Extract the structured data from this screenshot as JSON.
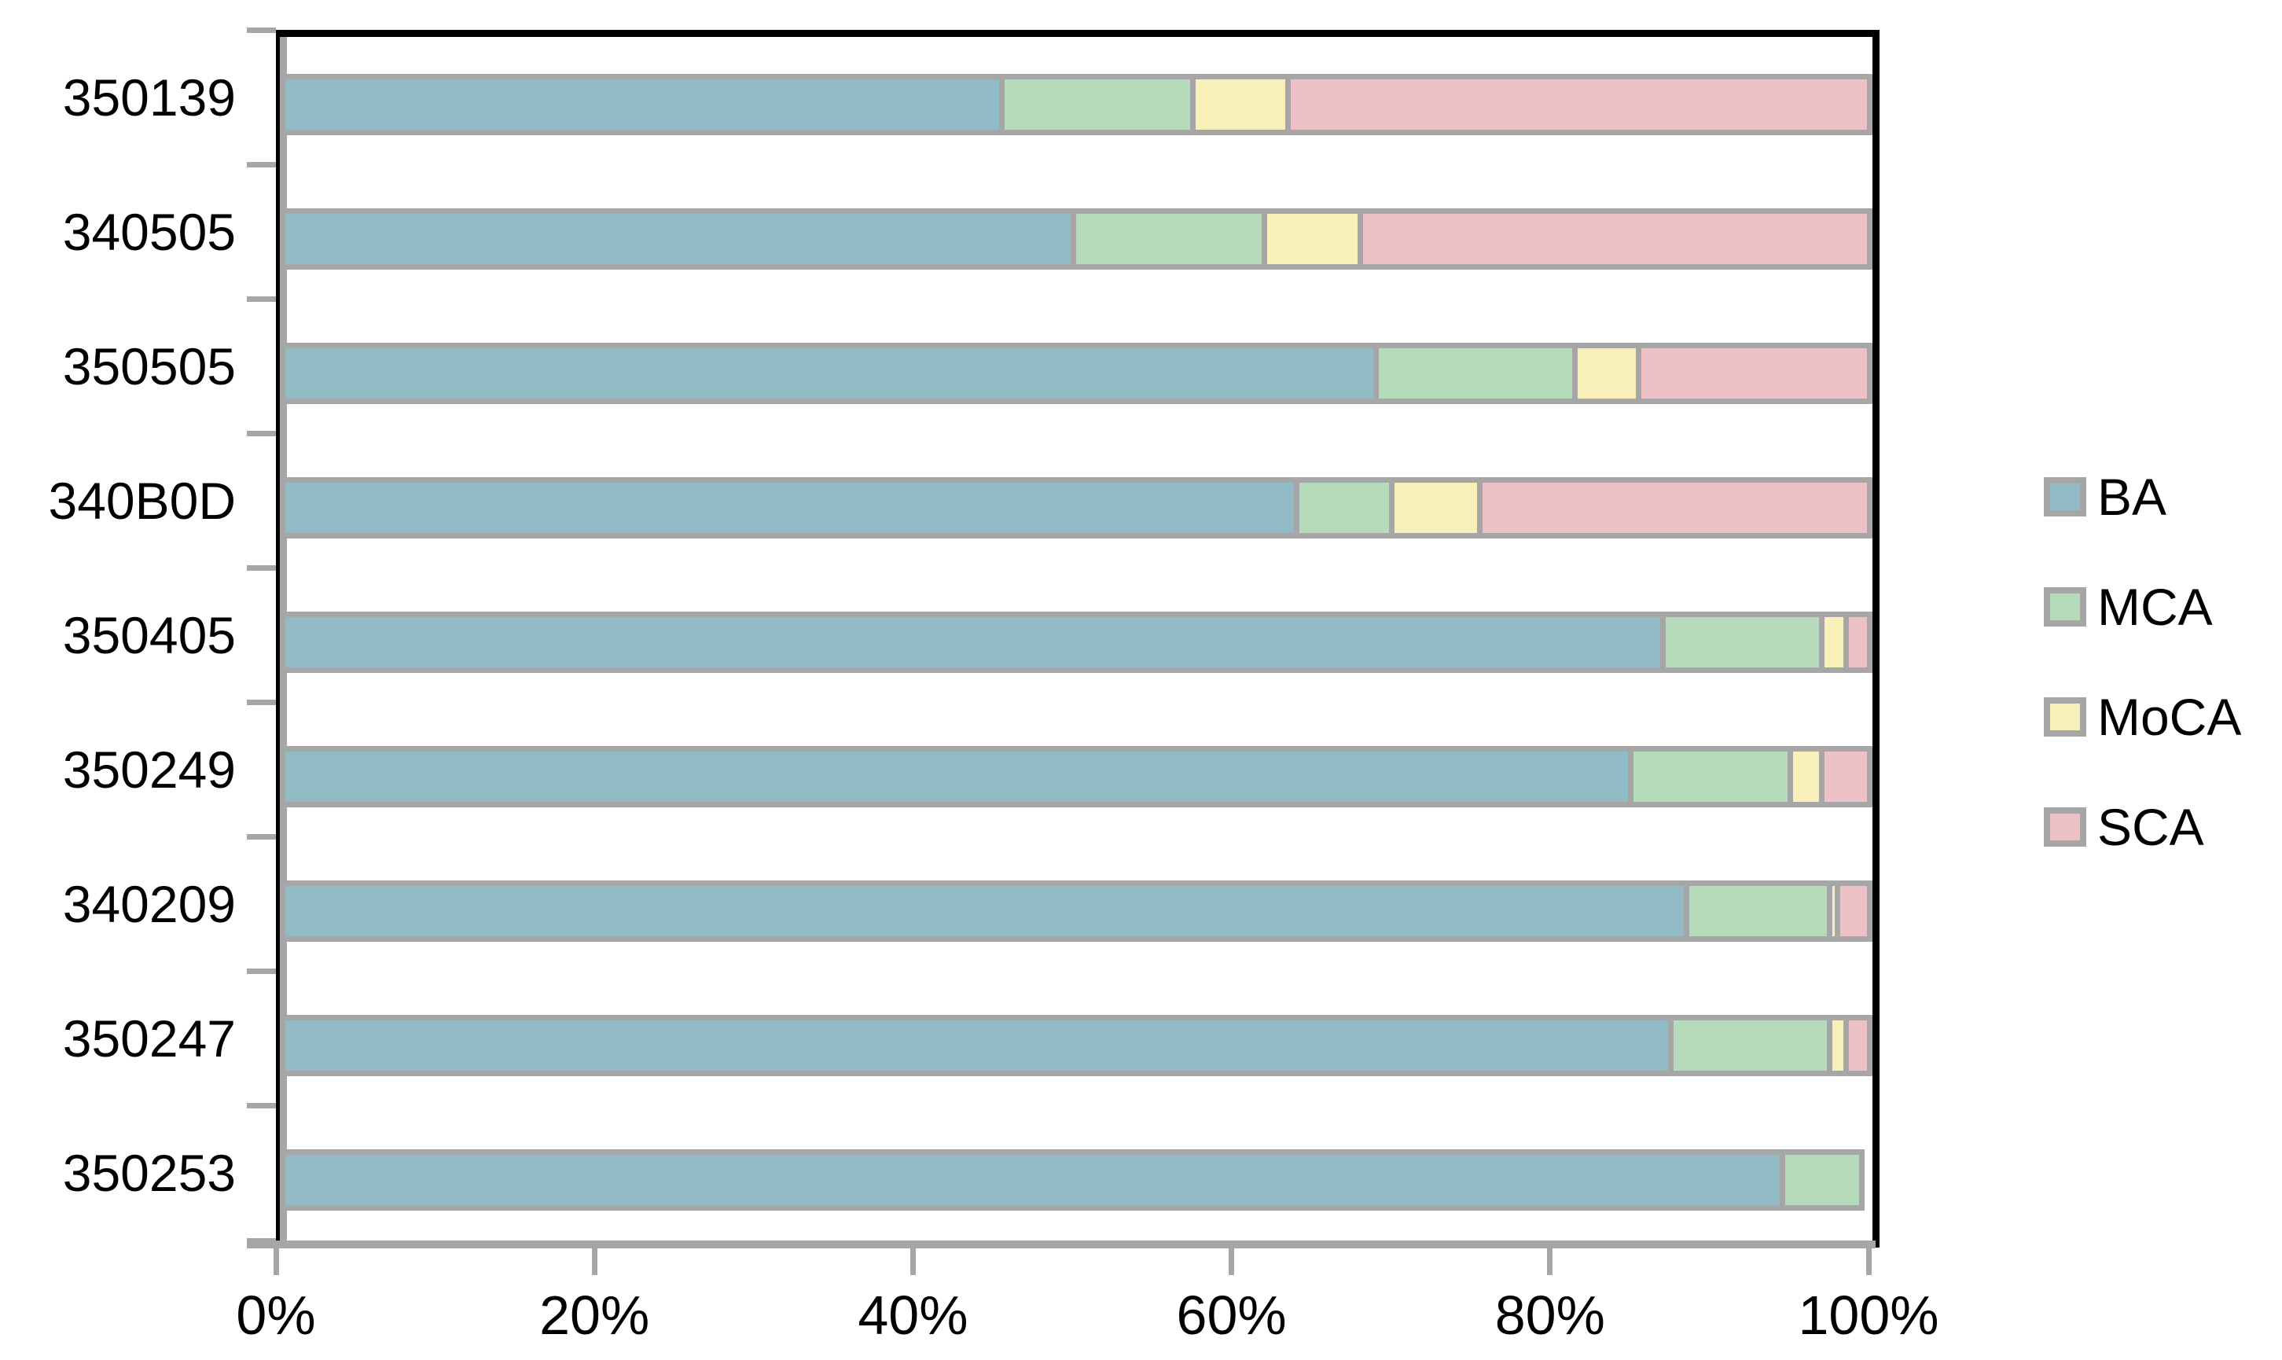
{
  "chart_data": {
    "type": "bar",
    "variant": "horizontal-stacked-100",
    "title": "",
    "xlabel": "",
    "ylabel": "",
    "xlim": [
      0,
      100
    ],
    "grid": false,
    "legend_position": "right",
    "categories": [
      "350139",
      "340505",
      "350505",
      "340B0D",
      "350405",
      "350249",
      "340209",
      "350247",
      "350253"
    ],
    "series": [
      {
        "name": "BA",
        "color": "#92BCC5",
        "values": [
          45.5,
          50.0,
          69.0,
          64.0,
          87.0,
          85.0,
          88.5,
          87.5,
          94.5
        ]
      },
      {
        "name": "MCA",
        "color": "#B6DBBA",
        "values": [
          12.0,
          12.0,
          12.5,
          6.0,
          10.0,
          10.0,
          9.0,
          10.0,
          5.0
        ]
      },
      {
        "name": "MoCA",
        "color": "#F9F0B9",
        "values": [
          6.0,
          6.0,
          4.0,
          5.5,
          1.5,
          2.0,
          0.5,
          1.0,
          0.0
        ]
      },
      {
        "name": "SCA",
        "color": "#EEC1C6",
        "values": [
          36.5,
          32.0,
          14.5,
          24.5,
          1.5,
          3.0,
          2.0,
          1.5,
          0.0
        ]
      }
    ],
    "x_tick_labels": [
      "0%",
      "20%",
      "40%",
      "60%",
      "80%",
      "100%"
    ],
    "colors": {
      "bar_outline": "#A6A6A6",
      "axis_line": "#A6A6A6",
      "plot_border": "#000000",
      "text": "#000000",
      "background": "#FFFFFF"
    }
  }
}
